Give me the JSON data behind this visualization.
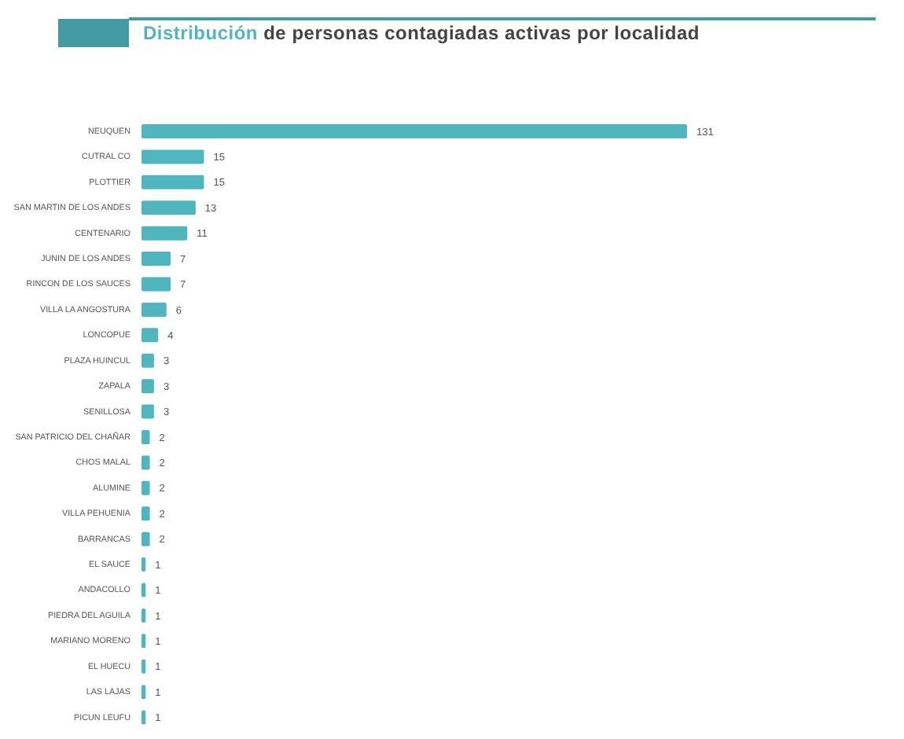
{
  "chart_data": {
    "type": "bar",
    "orientation": "horizontal",
    "title": "Distribución de personas contagiadas activas por localidad",
    "categories": [
      "NEUQUEN",
      "CUTRAL CO",
      "PLOTTIER",
      "SAN MARTIN DE LOS ANDES",
      "CENTENARIO",
      "JUNIN DE LOS ANDES",
      "RINCON DE LOS SAUCES",
      "VILLA LA ANGOSTURA",
      "LONCOPUE",
      "PLAZA HUINCUL",
      "ZAPALA",
      "SENILLOSA",
      "SAN PATRICIO DEL CHAÑAR",
      "CHOS MALAL",
      "ALUMINE",
      "VILLA PEHUENIA",
      "BARRANCAS",
      "EL SAUCE",
      "ANDACOLLO",
      "PIEDRA DEL AGUILA",
      "MARIANO MORENO",
      "EL HUECU",
      "LAS LAJAS",
      "PICUN LEUFU"
    ],
    "values": [
      131,
      15,
      15,
      13,
      11,
      7,
      7,
      6,
      4,
      3,
      3,
      3,
      2,
      2,
      2,
      2,
      2,
      1,
      1,
      1,
      1,
      1,
      1,
      1
    ],
    "color": "#4fb5bf",
    "data_labels": true
  }
}
